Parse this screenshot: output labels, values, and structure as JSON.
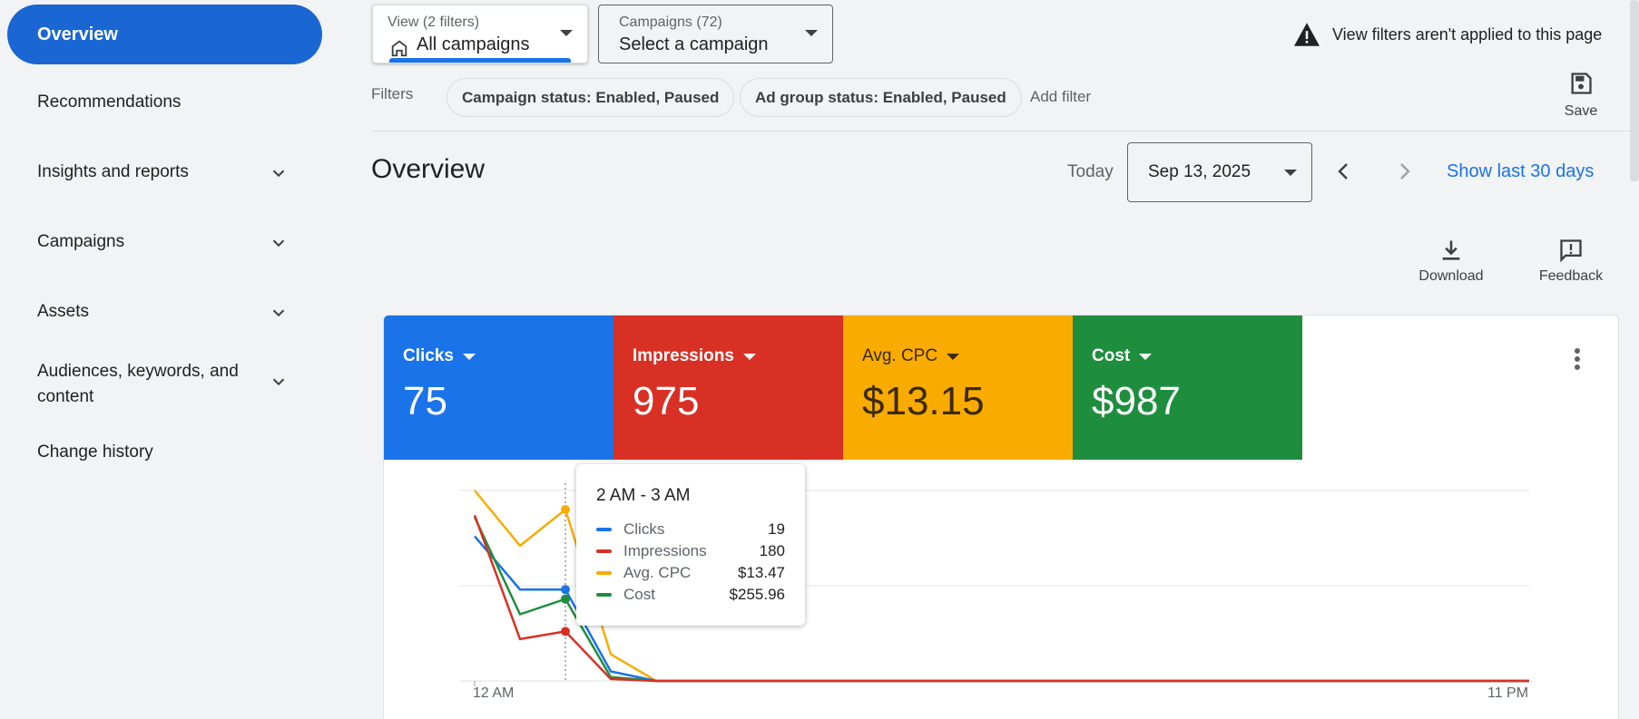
{
  "sidebar": {
    "items": [
      {
        "label": "Overview",
        "active": true
      },
      {
        "label": "Recommendations"
      },
      {
        "label": "Insights and reports",
        "expandable": true
      },
      {
        "label": "Campaigns",
        "expandable": true
      },
      {
        "label": "Assets",
        "expandable": true
      },
      {
        "label": "Audiences, keywords, and content",
        "expandable": true
      },
      {
        "label": "Change history"
      }
    ]
  },
  "topbar": {
    "view_selector": {
      "small": "View (2 filters)",
      "value": "All campaigns"
    },
    "campaign_selector": {
      "small": "Campaigns (72)",
      "value": "Select a campaign"
    },
    "warning": "View filters aren't applied to this page",
    "filters_label": "Filters",
    "chips": [
      "Campaign status: Enabled, Paused",
      "Ad group status: Enabled, Paused"
    ],
    "add_filter": "Add filter",
    "save_label": "Save"
  },
  "header": {
    "title": "Overview",
    "today_label": "Today",
    "date": "Sep 13, 2025",
    "show_last": "Show last 30 days",
    "download_label": "Download",
    "feedback_label": "Feedback"
  },
  "metrics": [
    {
      "label": "Clicks",
      "value": "75",
      "color": "#1a73e8"
    },
    {
      "label": "Impressions",
      "value": "975",
      "color": "#d93025"
    },
    {
      "label": "Avg. CPC",
      "value": "$13.15",
      "color": "#f9ab00"
    },
    {
      "label": "Cost",
      "value": "$987",
      "color": "#1e8e3e"
    }
  ],
  "tooltip": {
    "title": "2 AM - 3 AM",
    "rows": [
      {
        "name": "Clicks",
        "value": "19",
        "color": "#1a73e8"
      },
      {
        "name": "Impressions",
        "value": "180",
        "color": "#d93025"
      },
      {
        "name": "Avg. CPC",
        "value": "$13.47",
        "color": "#f9ab00"
      },
      {
        "name": "Cost",
        "value": "$255.96",
        "color": "#1e8e3e"
      }
    ]
  },
  "chart_data": {
    "type": "line",
    "x_tick_labels": [
      "12 AM",
      "11 PM"
    ],
    "x": [
      0,
      1,
      2,
      3,
      4,
      5,
      6,
      7,
      8,
      9,
      10,
      11,
      12,
      13,
      14,
      15,
      16,
      17,
      18,
      19,
      20,
      21,
      22,
      23
    ],
    "series": [
      {
        "name": "Clicks",
        "color": "#1a73e8",
        "values": [
          0.76,
          0.48,
          0.48,
          0.05,
          0,
          0,
          0,
          0,
          0,
          0,
          0,
          0,
          0,
          0,
          0,
          0,
          0,
          0,
          0,
          0,
          0,
          0,
          0,
          0
        ]
      },
      {
        "name": "Impressions",
        "color": "#d93025",
        "values": [
          0.87,
          0.22,
          0.26,
          0.01,
          0,
          0,
          0,
          0,
          0,
          0,
          0,
          0,
          0,
          0,
          0,
          0,
          0,
          0,
          0,
          0,
          0,
          0,
          0,
          0
        ]
      },
      {
        "name": "Avg. CPC",
        "color": "#f9ab00",
        "values": [
          1.0,
          0.71,
          0.9,
          0.14,
          0,
          0,
          0,
          0,
          0,
          0,
          0,
          0,
          0,
          0,
          0,
          0,
          0,
          0,
          0,
          0,
          0,
          0,
          0,
          0
        ]
      },
      {
        "name": "Cost",
        "color": "#1e8e3e",
        "values": [
          0.86,
          0.35,
          0.43,
          0.02,
          0,
          0,
          0,
          0,
          0,
          0,
          0,
          0,
          0,
          0,
          0,
          0,
          0,
          0,
          0,
          0,
          0,
          0,
          0,
          0
        ]
      }
    ],
    "highlight_index": 2,
    "grid": true
  }
}
